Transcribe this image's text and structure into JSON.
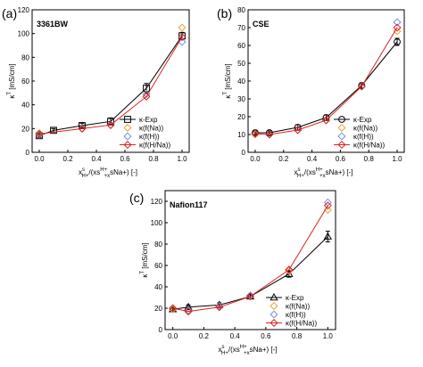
{
  "chart_data": [
    {
      "type": "line",
      "panel_label": "(a)",
      "title": "3361BW",
      "ylabel_parts": [
        "κ",
        "T",
        " [mS/cm]"
      ],
      "xlabel_parts": [
        "x",
        "s",
        "H+",
        "/(x",
        "s",
        "H+",
        "+x",
        "s",
        "Na+",
        ") [-]"
      ],
      "xlim": [
        -0.05,
        1.05
      ],
      "ylim": [
        0,
        120
      ],
      "xticks": [
        "0.0",
        "0.2",
        "0.4",
        "0.6",
        "0.8",
        "1.0"
      ],
      "yticks": [
        "0",
        "20",
        "40",
        "60",
        "80",
        "100",
        "120"
      ],
      "series": [
        {
          "name": "κ-Exp",
          "marker": "square",
          "color": "#000000",
          "line": true,
          "x": [
            0,
            0.1,
            0.3,
            0.5,
            0.75,
            1.0
          ],
          "y": [
            14,
            18.5,
            22.5,
            26,
            54,
            98
          ],
          "err": [
            1.5,
            1.5,
            2,
            3,
            4,
            3
          ]
        },
        {
          "name": "κ(f(Na))",
          "marker": "diamond",
          "color": "#f0a030",
          "line": false,
          "x": [
            0,
            0.3,
            0.5,
            0.75,
            1.0
          ],
          "y": [
            16,
            20,
            23,
            49,
            105
          ]
        },
        {
          "name": "κ(f(H))",
          "marker": "diamond",
          "color": "#6f8fe8",
          "line": false,
          "x": [
            0,
            0.3,
            0.5,
            0.75,
            1.0
          ],
          "y": [
            15,
            20,
            23,
            49,
            93
          ]
        },
        {
          "name": "κ(f(H/Na))",
          "marker": "diamond",
          "color": "#e02020",
          "line": true,
          "x": [
            0,
            0.3,
            0.5,
            0.75,
            1.0
          ],
          "y": [
            15.5,
            20,
            23,
            47,
            97
          ]
        }
      ]
    },
    {
      "type": "line",
      "panel_label": "(b)",
      "title": "CSE",
      "ylabel_parts": [
        "κ",
        "T",
        " [mS/cm]"
      ],
      "xlabel_parts": [
        "x",
        "s",
        "H+",
        "/(x",
        "s",
        "H+",
        "+x",
        "s",
        "Na+",
        ") [-]"
      ],
      "xlim": [
        -0.05,
        1.05
      ],
      "ylim": [
        0,
        80
      ],
      "xticks": [
        "0.0",
        "0.2",
        "0.4",
        "0.6",
        "0.8",
        "1.0"
      ],
      "yticks": [
        "0",
        "10",
        "20",
        "30",
        "40",
        "50",
        "60",
        "70",
        "80"
      ],
      "series": [
        {
          "name": "κ-Exp",
          "marker": "circle",
          "color": "#000000",
          "line": true,
          "x": [
            0,
            0.1,
            0.3,
            0.5,
            0.75,
            1.0
          ],
          "y": [
            11,
            11,
            14,
            19.5,
            37.5,
            62
          ],
          "err": [
            1,
            1,
            1.5,
            1.5,
            1.5,
            2
          ]
        },
        {
          "name": "κ(f(Na))",
          "marker": "diamond",
          "color": "#f0a030",
          "line": false,
          "x": [
            0,
            0.1,
            0.3,
            0.5,
            0.75,
            1.0
          ],
          "y": [
            10,
            10,
            12.5,
            18,
            37,
            68
          ]
        },
        {
          "name": "κ(f(H))",
          "marker": "diamond",
          "color": "#6f8fe8",
          "line": false,
          "x": [
            0,
            0.1,
            0.3,
            0.5,
            0.75,
            1.0
          ],
          "y": [
            10.5,
            10,
            12.5,
            18,
            37,
            73
          ]
        },
        {
          "name": "κ(f(H/Na))",
          "marker": "diamond",
          "color": "#e02020",
          "line": true,
          "x": [
            0,
            0.1,
            0.3,
            0.5,
            0.75,
            1.0
          ],
          "y": [
            10.5,
            10,
            12.5,
            18,
            37,
            70
          ]
        }
      ]
    },
    {
      "type": "line",
      "panel_label": "(c)",
      "title": "Nafion117",
      "ylabel_parts": [
        "κ",
        "T",
        " [mS/cm]"
      ],
      "xlabel_parts": [
        "x",
        "s",
        "H+",
        "/(x",
        "s",
        "H+",
        "+x",
        "s",
        "Na+",
        ") [-]"
      ],
      "xlim": [
        -0.05,
        1.05
      ],
      "ylim": [
        0,
        130
      ],
      "xticks": [
        "0.0",
        "0.2",
        "0.4",
        "0.6",
        "0.8",
        "1.0"
      ],
      "yticks": [
        "0",
        "20",
        "40",
        "60",
        "80",
        "100",
        "120"
      ],
      "series": [
        {
          "name": "κ-Exp",
          "marker": "triangle",
          "color": "#000000",
          "line": true,
          "x": [
            0,
            0.1,
            0.3,
            0.5,
            0.75,
            1.0
          ],
          "y": [
            19,
            21,
            23,
            31,
            52,
            87
          ],
          "err": [
            2,
            2,
            2,
            2,
            3,
            5
          ]
        },
        {
          "name": "κ(f(Na))",
          "marker": "diamond",
          "color": "#f0a030",
          "line": false,
          "x": [
            0,
            0.1,
            0.3,
            0.5,
            0.75,
            1.0
          ],
          "y": [
            19,
            17,
            21,
            31,
            55,
            112
          ]
        },
        {
          "name": "κ(f(H))",
          "marker": "diamond",
          "color": "#6f8fe8",
          "line": false,
          "x": [
            0,
            0.1,
            0.3,
            0.5,
            0.75,
            1.0
          ],
          "y": [
            20,
            18,
            22,
            32,
            56,
            119
          ]
        },
        {
          "name": "κ(f(H/Na))",
          "marker": "diamond",
          "color": "#e02020",
          "line": true,
          "x": [
            0,
            0.1,
            0.3,
            0.5,
            0.75,
            1.0
          ],
          "y": [
            20,
            17,
            21,
            31,
            56,
            116
          ]
        }
      ]
    }
  ]
}
